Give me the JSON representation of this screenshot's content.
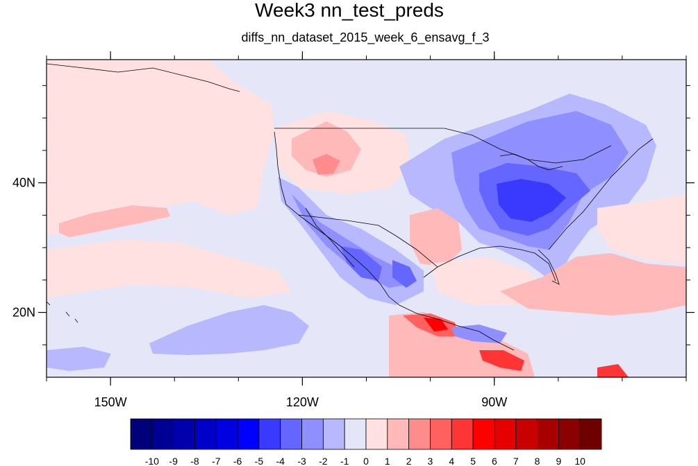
{
  "title": "Week3 nn_test_preds",
  "subtitle": "diffs_nn_dataset_2015_week_6_ensavg_f_3",
  "map": {
    "lon_range": [
      -160,
      -60
    ],
    "lat_range": [
      10,
      59
    ],
    "x_ticks": [
      {
        "lon": -150,
        "label": "150W"
      },
      {
        "lon": -120,
        "label": "120W"
      },
      {
        "lon": -90,
        "label": "90W"
      }
    ],
    "y_ticks": [
      {
        "lat": 20,
        "label": "20N"
      },
      {
        "lat": 40,
        "label": "40N"
      }
    ],
    "background_color": "#e6e6f9"
  },
  "colorbar": {
    "labels": [
      "-10",
      "-9",
      "-8",
      "-7",
      "-6",
      "-5",
      "-4",
      "-3",
      "-2",
      "-1",
      "0",
      "1",
      "2",
      "3",
      "4",
      "5",
      "6",
      "7",
      "8",
      "9",
      "10"
    ],
    "colors": [
      "#00007a",
      "#000094",
      "#0000ad",
      "#0000c8",
      "#0000e1",
      "#0000ff",
      "#3a3aff",
      "#6565ff",
      "#8f8fff",
      "#b8b8ff",
      "#e5e5fa",
      "#ffe1e1",
      "#ffb9b9",
      "#ff8c8c",
      "#ff6060",
      "#ff3434",
      "#ff0000",
      "#e60000",
      "#c80000",
      "#a80000",
      "#8b0000",
      "#6e0000"
    ]
  },
  "regions": [
    {
      "name": "pacific-pink-band",
      "color": "#ffe1e1"
    },
    {
      "name": "western-us-pink",
      "color": "#ffb9b9"
    },
    {
      "name": "eastern-us-blue",
      "color": "#8f8fff"
    },
    {
      "name": "eastern-us-core",
      "color": "#3a3aff"
    },
    {
      "name": "mexico-blue",
      "color": "#6565ff"
    },
    {
      "name": "pacific-south-blue",
      "color": "#b8b8ff"
    },
    {
      "name": "central-america-red",
      "color": "#ff3434"
    },
    {
      "name": "caribbean-pink",
      "color": "#ffb9b9"
    }
  ]
}
